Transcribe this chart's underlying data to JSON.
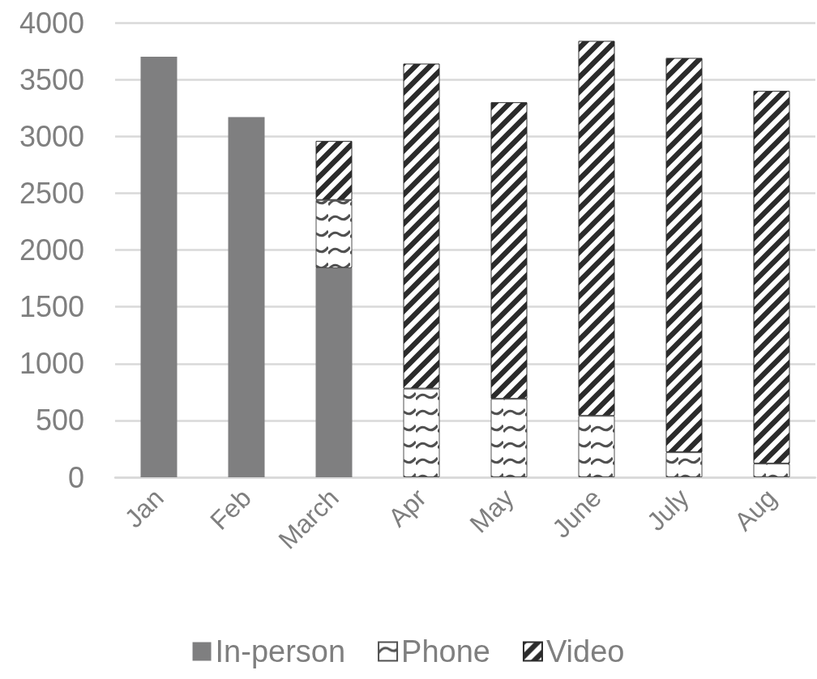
{
  "chart_data": {
    "type": "bar",
    "stacked": true,
    "categories": [
      "Jan",
      "Feb",
      "March",
      "Apr",
      "May",
      "June",
      "July",
      "Aug"
    ],
    "series": [
      {
        "name": "In-person",
        "color": "#7f7f80",
        "values": [
          3700,
          3170,
          1840,
          null,
          null,
          null,
          null,
          null
        ]
      },
      {
        "name": "Phone",
        "color": "#505050",
        "values": [
          null,
          null,
          600,
          780,
          690,
          540,
          220,
          120
        ]
      },
      {
        "name": "Video",
        "color": "#2b2b2b",
        "values": [
          null,
          null,
          520,
          2860,
          2610,
          3300,
          3470,
          3280
        ]
      }
    ],
    "ylim": [
      0,
      4000
    ],
    "yticks": [
      0,
      500,
      1000,
      1500,
      2000,
      2500,
      3000,
      3500,
      4000
    ],
    "grid": "y",
    "legend": "bottom"
  }
}
